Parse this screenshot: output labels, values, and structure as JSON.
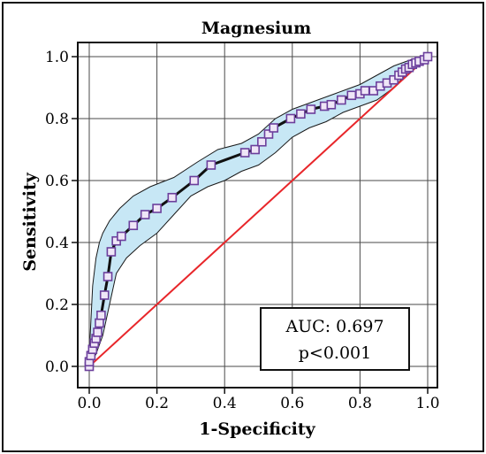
{
  "chart_data": {
    "type": "line",
    "title": "Magnesium",
    "xlabel": "1-Specificity",
    "ylabel": "Sensitivity",
    "xlim": [
      0,
      1
    ],
    "ylim": [
      0,
      1
    ],
    "x_ticks": [
      "0.0",
      "0.2",
      "0.4",
      "0.6",
      "0.8",
      "1.0"
    ],
    "y_ticks": [
      "0.0",
      "0.2",
      "0.4",
      "0.6",
      "0.8",
      "1.0"
    ],
    "grid": true,
    "annotation": {
      "auc": "AUC: 0.697",
      "p": "p<0.001"
    },
    "series": [
      {
        "role": "roc-curve",
        "x": [
          0.0,
          0.0,
          0.005,
          0.01,
          0.015,
          0.02,
          0.025,
          0.03,
          0.035,
          0.045,
          0.055,
          0.065,
          0.08,
          0.095,
          0.13,
          0.165,
          0.2,
          0.245,
          0.31,
          0.36,
          0.46,
          0.49,
          0.51,
          0.53,
          0.545,
          0.595,
          0.625,
          0.655,
          0.695,
          0.715,
          0.745,
          0.775,
          0.8,
          0.815,
          0.84,
          0.86,
          0.88,
          0.9,
          0.915,
          0.925,
          0.935,
          0.945,
          0.955,
          0.965,
          0.975,
          0.99,
          1.0
        ],
        "y": [
          0.0,
          0.015,
          0.035,
          0.055,
          0.075,
          0.09,
          0.11,
          0.14,
          0.165,
          0.23,
          0.29,
          0.37,
          0.405,
          0.42,
          0.455,
          0.49,
          0.51,
          0.545,
          0.6,
          0.65,
          0.69,
          0.7,
          0.725,
          0.75,
          0.77,
          0.8,
          0.815,
          0.83,
          0.84,
          0.845,
          0.86,
          0.875,
          0.88,
          0.89,
          0.89,
          0.905,
          0.915,
          0.925,
          0.94,
          0.95,
          0.96,
          0.965,
          0.975,
          0.98,
          0.985,
          0.99,
          1.0
        ]
      },
      {
        "role": "confidence-upper",
        "x": [
          0.0,
          0.005,
          0.01,
          0.02,
          0.03,
          0.04,
          0.06,
          0.09,
          0.13,
          0.18,
          0.25,
          0.32,
          0.38,
          0.45,
          0.5,
          0.55,
          0.6,
          0.65,
          0.7,
          0.75,
          0.8,
          0.85,
          0.9,
          0.95,
          1.0
        ],
        "y": [
          0.04,
          0.15,
          0.26,
          0.35,
          0.4,
          0.43,
          0.47,
          0.51,
          0.55,
          0.58,
          0.61,
          0.66,
          0.7,
          0.72,
          0.75,
          0.8,
          0.83,
          0.85,
          0.87,
          0.89,
          0.91,
          0.94,
          0.97,
          0.99,
          1.0
        ]
      },
      {
        "role": "confidence-lower",
        "x": [
          0.0,
          0.02,
          0.04,
          0.06,
          0.08,
          0.11,
          0.15,
          0.2,
          0.25,
          0.3,
          0.35,
          0.4,
          0.45,
          0.5,
          0.55,
          0.6,
          0.65,
          0.7,
          0.75,
          0.8,
          0.85,
          0.9,
          0.95,
          1.0
        ],
        "y": [
          0.0,
          0.04,
          0.1,
          0.2,
          0.3,
          0.35,
          0.39,
          0.43,
          0.49,
          0.55,
          0.58,
          0.6,
          0.63,
          0.65,
          0.69,
          0.74,
          0.77,
          0.79,
          0.82,
          0.84,
          0.86,
          0.9,
          0.96,
          1.0
        ]
      },
      {
        "role": "reference-line",
        "x": [
          0,
          1
        ],
        "y": [
          0,
          1
        ]
      }
    ],
    "colors": {
      "curve": "#111111",
      "marker_fill": "#efe6f7",
      "marker_stroke": "#6b3f9c",
      "band_fill": "#c7e7f5",
      "band_stroke": "#1a1a1a",
      "reference": "#e8262a",
      "grid": "#4a4a4a"
    }
  }
}
